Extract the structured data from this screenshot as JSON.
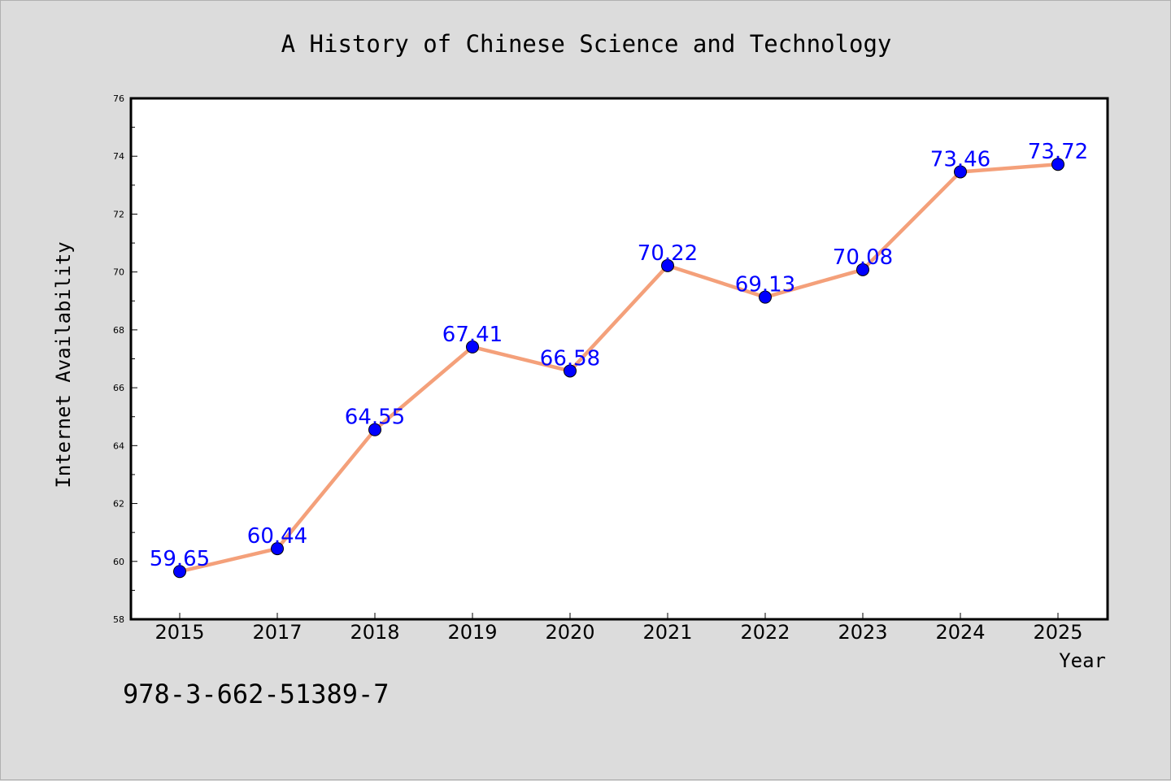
{
  "chart_data": {
    "type": "line",
    "title": "A History of Chinese Science and Technology",
    "xlabel": "Year",
    "ylabel": "Internet Availability",
    "categories": [
      "2015",
      "2017",
      "2018",
      "2019",
      "2020",
      "2021",
      "2022",
      "2023",
      "2024",
      "2025"
    ],
    "series": [
      {
        "values": [
          59.65,
          60.44,
          64.55,
          67.41,
          66.58,
          70.22,
          69.13,
          70.08,
          73.46,
          73.72
        ],
        "line_color": "#f4a07a",
        "marker_color": "#0000ff",
        "label_color": "#0000ff"
      }
    ],
    "data_labels": [
      "59.65",
      "60.44",
      "64.55",
      "67.41",
      "66.58",
      "70.22",
      "69.13",
      "70.08",
      "73.46",
      "73.72"
    ],
    "ylim": [
      58,
      76
    ],
    "yticks": [
      "58",
      "60",
      "62",
      "64",
      "66",
      "68",
      "70",
      "72",
      "74",
      "76"
    ],
    "grid": false,
    "legend": "none"
  },
  "footer_text": "978-3-662-51389-7",
  "colors": {
    "background": "#dcdcdc",
    "plot_background": "#ffffff",
    "axis": "#000000"
  }
}
